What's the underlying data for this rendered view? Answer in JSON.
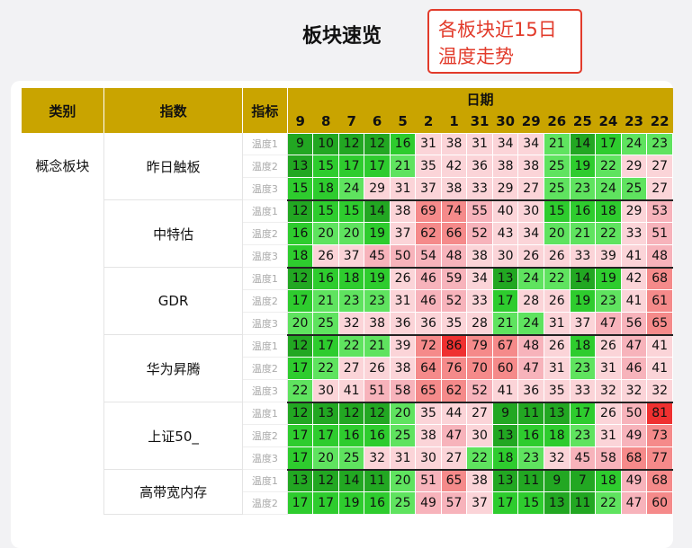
{
  "title": "板块速览",
  "note": "各板块近15日\n温度走势",
  "headers": {
    "category": "类别",
    "index": "指数",
    "indicator": "指标",
    "date": "日期"
  },
  "days": [
    "9",
    "8",
    "7",
    "6",
    "5",
    "2",
    "1",
    "31",
    "30",
    "29",
    "26",
    "25",
    "24",
    "23",
    "22"
  ],
  "colors": {
    "dark_green": "#22a722",
    "green": "#2ecc2e",
    "light_green": "#5fe35f",
    "gray": "#b8b8b8",
    "blue": "#1d4fb6",
    "pink_light": "#fbd4d8",
    "pink": "#f7b3bb",
    "salmon": "#f58a8a",
    "red": "#ef3030"
  },
  "category": "概念板块",
  "indices": [
    {
      "name": "昨日触板",
      "rows": [
        {
          "label": "温度1",
          "values": [
            9,
            10,
            12,
            12,
            16,
            31,
            38,
            31,
            34,
            34,
            21,
            14,
            17,
            24,
            23
          ]
        },
        {
          "label": "温度2",
          "values": [
            13,
            15,
            17,
            17,
            21,
            35,
            42,
            36,
            38,
            38,
            25,
            19,
            22,
            29,
            27
          ]
        },
        {
          "label": "温度3",
          "values": [
            15,
            18,
            24,
            29,
            31,
            37,
            38,
            33,
            29,
            27,
            25,
            23,
            24,
            25,
            27
          ]
        }
      ]
    },
    {
      "name": "中特估",
      "rows": [
        {
          "label": "温度1",
          "values": [
            12,
            15,
            15,
            14,
            38,
            69,
            74,
            55,
            40,
            30,
            15,
            16,
            18,
            29,
            53
          ]
        },
        {
          "label": "温度2",
          "values": [
            16,
            20,
            20,
            19,
            37,
            62,
            66,
            52,
            43,
            34,
            20,
            21,
            22,
            33,
            51
          ]
        },
        {
          "label": "温度3",
          "values": [
            18,
            26,
            37,
            45,
            50,
            54,
            48,
            38,
            30,
            26,
            26,
            33,
            39,
            41,
            48
          ]
        }
      ]
    },
    {
      "name": "GDR",
      "rows": [
        {
          "label": "温度1",
          "values": [
            12,
            16,
            18,
            19,
            26,
            46,
            59,
            34,
            13,
            24,
            22,
            14,
            19,
            42,
            68
          ]
        },
        {
          "label": "温度2",
          "values": [
            17,
            21,
            23,
            23,
            31,
            46,
            52,
            33,
            17,
            28,
            26,
            19,
            23,
            41,
            61
          ]
        },
        {
          "label": "温度3",
          "values": [
            20,
            25,
            32,
            38,
            36,
            36,
            35,
            28,
            21,
            24,
            31,
            37,
            47,
            56,
            65
          ]
        }
      ]
    },
    {
      "name": "华为昇腾",
      "rows": [
        {
          "label": "温度1",
          "values": [
            12,
            17,
            22,
            21,
            39,
            72,
            86,
            79,
            67,
            48,
            26,
            18,
            26,
            47,
            41
          ]
        },
        {
          "label": "温度2",
          "values": [
            17,
            22,
            27,
            26,
            38,
            64,
            76,
            70,
            60,
            47,
            31,
            23,
            31,
            46,
            41
          ]
        },
        {
          "label": "温度3",
          "values": [
            22,
            30,
            41,
            51,
            58,
            65,
            62,
            52,
            41,
            36,
            35,
            33,
            32,
            32,
            32
          ]
        }
      ]
    },
    {
      "name": "上证50_",
      "rows": [
        {
          "label": "温度1",
          "values": [
            12,
            13,
            12,
            12,
            20,
            35,
            44,
            27,
            9,
            11,
            13,
            17,
            26,
            50,
            81
          ]
        },
        {
          "label": "温度2",
          "values": [
            17,
            17,
            16,
            16,
            25,
            38,
            47,
            30,
            13,
            16,
            18,
            23,
            31,
            49,
            73
          ]
        },
        {
          "label": "温度3",
          "values": [
            17,
            20,
            25,
            32,
            31,
            30,
            27,
            22,
            18,
            23,
            32,
            45,
            58,
            68,
            77
          ]
        }
      ]
    },
    {
      "name": "高带宽内存",
      "rows": [
        {
          "label": "温度1",
          "values": [
            13,
            12,
            14,
            11,
            20,
            51,
            65,
            38,
            13,
            11,
            9,
            7,
            18,
            49,
            68
          ]
        },
        {
          "label": "温度2",
          "values": [
            17,
            17,
            19,
            16,
            25,
            49,
            57,
            37,
            17,
            15,
            13,
            11,
            22,
            47,
            60
          ]
        }
      ]
    }
  ]
}
